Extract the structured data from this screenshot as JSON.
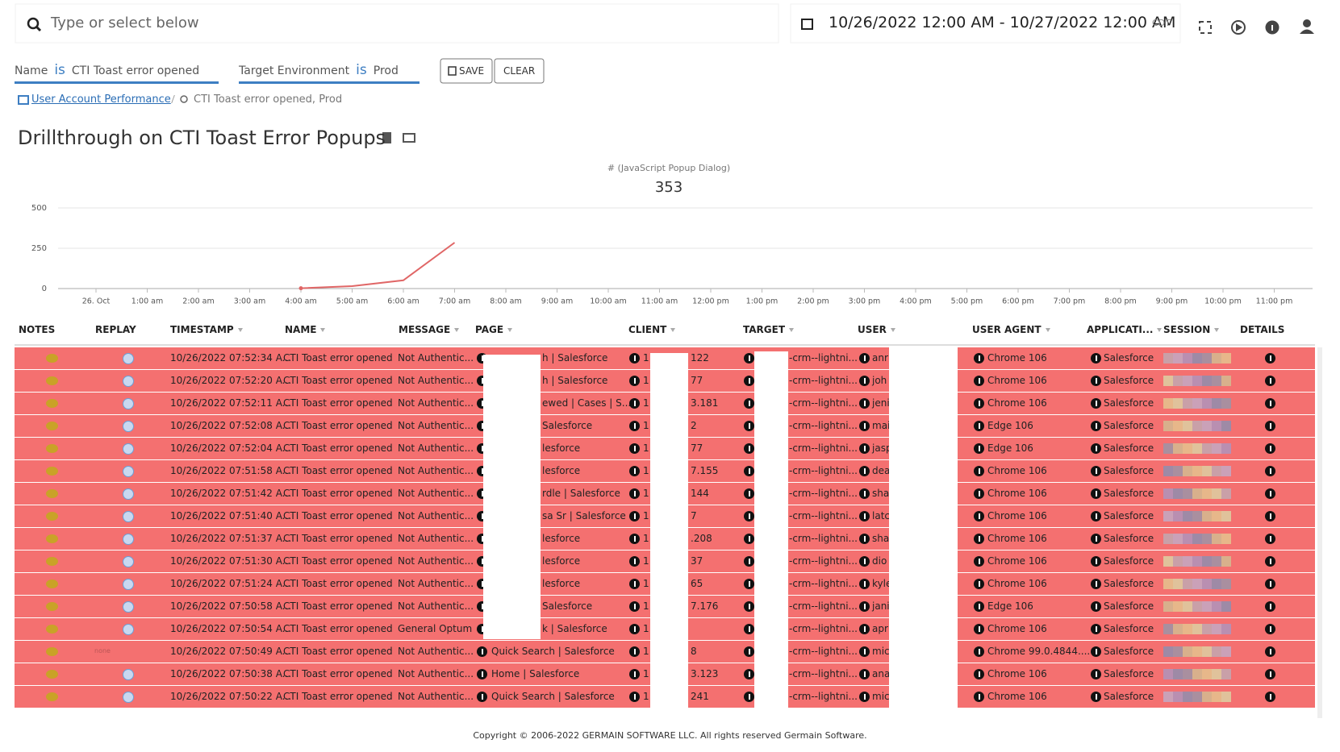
{
  "search": {
    "placeholder": "Type or select below"
  },
  "date_range": {
    "text": "10/26/2022 12:00 AM - 10/27/2022 12:00 AM",
    "timezone": "CDT"
  },
  "filters": [
    {
      "field": "Name",
      "op": "is",
      "value": "CTI Toast error opened"
    },
    {
      "field": "Target Environment",
      "op": "is",
      "value": "Prod"
    }
  ],
  "buttons": {
    "save": "SAVE",
    "clear": "CLEAR"
  },
  "breadcrumb": {
    "link": "User Account Performance",
    "current": "CTI Toast error opened, Prod"
  },
  "title": "Drillthrough on CTI Toast Error Popups",
  "chart_data": {
    "type": "line",
    "subtitle": "# (JavaScript Popup Dialog)",
    "total": 353,
    "categories": [
      "26. Oct",
      "1:00 am",
      "2:00 am",
      "3:00 am",
      "4:00 am",
      "5:00 am",
      "6:00 am",
      "7:00 am",
      "8:00 am",
      "9:00 am",
      "10:00 am",
      "11:00 am",
      "12:00 pm",
      "1:00 pm",
      "2:00 pm",
      "3:00 pm",
      "4:00 pm",
      "5:00 pm",
      "6:00 pm",
      "7:00 pm",
      "8:00 pm",
      "9:00 pm",
      "10:00 pm",
      "11:00 pm"
    ],
    "values": [
      null,
      null,
      null,
      null,
      2,
      15,
      51,
      285,
      null,
      null,
      null,
      null,
      null,
      null,
      null,
      null,
      null,
      null,
      null,
      null,
      null,
      null,
      null,
      null
    ],
    "color": "#e06666",
    "ylim": [
      0,
      500
    ],
    "yticks": [
      0,
      250,
      500
    ],
    "grid": true
  },
  "table": {
    "columns": [
      "NOTES",
      "REPLAY",
      "TIMESTAMP",
      "NAME",
      "MESSAGE",
      "PAGE",
      "CLIENT",
      "TARGET",
      "USER",
      "USER AGENT",
      "APPLICATI...",
      "SESSION",
      "DETAILS"
    ],
    "rows": [
      {
        "timestamp": "10/26/2022 07:52:34 A...",
        "name": "CTI Toast error opened",
        "message": "Not Authentic...",
        "page": "h | Salesforce",
        "client": [
          "1",
          "122"
        ],
        "target": "-crm--lightni...",
        "user": "anr",
        "user_agent": "Chrome 106",
        "application": "Salesforce"
      },
      {
        "timestamp": "10/26/2022 07:52:20 A...",
        "name": "CTI Toast error opened",
        "message": "Not Authentic...",
        "page": "h | Salesforce",
        "client": [
          "1",
          "77"
        ],
        "target": "-crm--lightni...",
        "user": "joh",
        "user_agent": "Chrome 106",
        "application": "Salesforce"
      },
      {
        "timestamp": "10/26/2022 07:52:11 A...",
        "name": "CTI Toast error opened",
        "message": "Not Authentic...",
        "page": "ewed | Cases | S...",
        "client": [
          "1",
          "3.181"
        ],
        "target": "-crm--lightni...",
        "user": "jeni",
        "user_agent": "Chrome 106",
        "application": "Salesforce"
      },
      {
        "timestamp": "10/26/2022 07:52:08 A...",
        "name": "CTI Toast error opened",
        "message": "Not Authentic...",
        "page": "Salesforce",
        "client": [
          "1",
          "2"
        ],
        "target": "-crm--lightni...",
        "user": "mai",
        "user_agent": "Edge 106",
        "application": "Salesforce"
      },
      {
        "timestamp": "10/26/2022 07:52:04 A...",
        "name": "CTI Toast error opened",
        "message": "Not Authentic...",
        "page": "lesforce",
        "client": [
          "1",
          "77"
        ],
        "target": "-crm--lightni...",
        "user": "jasp",
        "user_agent": "Edge 106",
        "application": "Salesforce"
      },
      {
        "timestamp": "10/26/2022 07:51:58 A...",
        "name": "CTI Toast error opened",
        "message": "Not Authentic...",
        "page": "lesforce",
        "client": [
          "1",
          "7.155"
        ],
        "target": "-crm--lightni...",
        "user": "dea",
        "user_agent": "Chrome 106",
        "application": "Salesforce"
      },
      {
        "timestamp": "10/26/2022 07:51:42 A...",
        "name": "CTI Toast error opened",
        "message": "Not Authentic...",
        "page": "rdle | Salesforce",
        "client": [
          "1",
          "144"
        ],
        "target": "-crm--lightni...",
        "user": "sha",
        "user_agent": "Chrome 106",
        "application": "Salesforce"
      },
      {
        "timestamp": "10/26/2022 07:51:40 A...",
        "name": "CTI Toast error opened",
        "message": "Not Authentic...",
        "page": "sa Sr | Salesforce",
        "client": [
          "1",
          "7"
        ],
        "target": "-crm--lightni...",
        "user": "latc",
        "user_agent": "Chrome 106",
        "application": "Salesforce"
      },
      {
        "timestamp": "10/26/2022 07:51:37 A...",
        "name": "CTI Toast error opened",
        "message": "Not Authentic...",
        "page": "lesforce",
        "client": [
          "1",
          ".208"
        ],
        "target": "-crm--lightni...",
        "user": "sha",
        "user_agent": "Chrome 106",
        "application": "Salesforce"
      },
      {
        "timestamp": "10/26/2022 07:51:30 A...",
        "name": "CTI Toast error opened",
        "message": "Not Authentic...",
        "page": "lesforce",
        "client": [
          "1",
          "37"
        ],
        "target": "-crm--lightni...",
        "user": "dio",
        "user_agent": "Chrome 106",
        "application": "Salesforce"
      },
      {
        "timestamp": "10/26/2022 07:51:24 A...",
        "name": "CTI Toast error opened",
        "message": "Not Authentic...",
        "page": "lesforce",
        "client": [
          "1",
          "65"
        ],
        "target": "-crm--lightni...",
        "user": "kyle",
        "user_agent": "Chrome 106",
        "application": "Salesforce"
      },
      {
        "timestamp": "10/26/2022 07:50:58 A...",
        "name": "CTI Toast error opened",
        "message": "Not Authentic...",
        "page": "Salesforce",
        "client": [
          "1",
          "7.176"
        ],
        "target": "-crm--lightni...",
        "user": "jani",
        "user_agent": "Edge 106",
        "application": "Salesforce"
      },
      {
        "timestamp": "10/26/2022 07:50:54 A...",
        "name": "CTI Toast error opened",
        "message": "General Optum",
        "page": "k | Salesforce",
        "client": [
          "1"
        ],
        "target": "-crm--lightni...",
        "user": "apr",
        "user_agent": "Chrome 106",
        "application": "Salesforce"
      },
      {
        "timestamp": "10/26/2022 07:50:49 A...",
        "name": "CTI Toast error opened",
        "message": "Not Authentic...",
        "page": "Quick Search | Salesforce",
        "client": [
          "1",
          "8"
        ],
        "target": "-crm--lightni...",
        "user": "mic",
        "user_agent": "Chrome 99.0.4844....",
        "application": "Salesforce",
        "replay": "none"
      },
      {
        "timestamp": "10/26/2022 07:50:38 A...",
        "name": "CTI Toast error opened",
        "message": "Not Authentic...",
        "page": "Home | Salesforce",
        "client": [
          "1",
          "3.123"
        ],
        "target": "-crm--lightni...",
        "user": "ana",
        "user_agent": "Chrome 106",
        "application": "Salesforce"
      },
      {
        "timestamp": "10/26/2022 07:50:22 A...",
        "name": "CTI Toast error opened",
        "message": "Not Authentic...",
        "page": "Quick Search | Salesforce",
        "client": [
          "1",
          "241"
        ],
        "target": "-crm--lightni...",
        "user": "mic",
        "user_agent": "Chrome 106",
        "application": "Salesforce"
      }
    ]
  },
  "footer": {
    "text": "Copyright © 2006-2022 GERMAIN SOFTWARE LLC. All rights reserved Germain Software."
  }
}
